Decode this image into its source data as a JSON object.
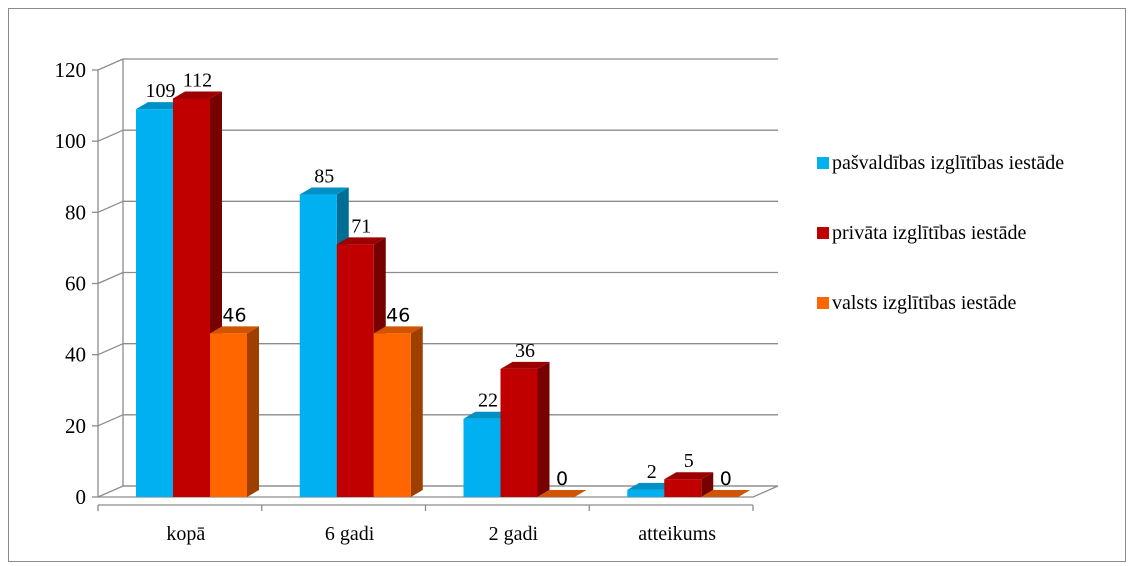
{
  "chart_data": {
    "type": "bar",
    "categories": [
      "kopā",
      "6 gadi",
      "2 gadi",
      "atteikums"
    ],
    "series": [
      {
        "name": "pašvaldības izglītības iestāde",
        "values": [
          109,
          85,
          22,
          2
        ],
        "color": "#00b0f0",
        "label_font": "serif"
      },
      {
        "name": "privāta  izglītības iestāde",
        "values": [
          112,
          71,
          36,
          5
        ],
        "color": "#c00000",
        "label_font": "serif"
      },
      {
        "name": "valsts  izglītības iestāde",
        "values": [
          46,
          46,
          0,
          0
        ],
        "color": "#ff6600",
        "label_font": "sans"
      }
    ],
    "ylim": [
      0,
      120
    ],
    "yticks": [
      "0",
      "20",
      "40",
      "60",
      "80",
      "100",
      "120"
    ],
    "grid": true,
    "three_d": true,
    "legend_position": "right"
  }
}
